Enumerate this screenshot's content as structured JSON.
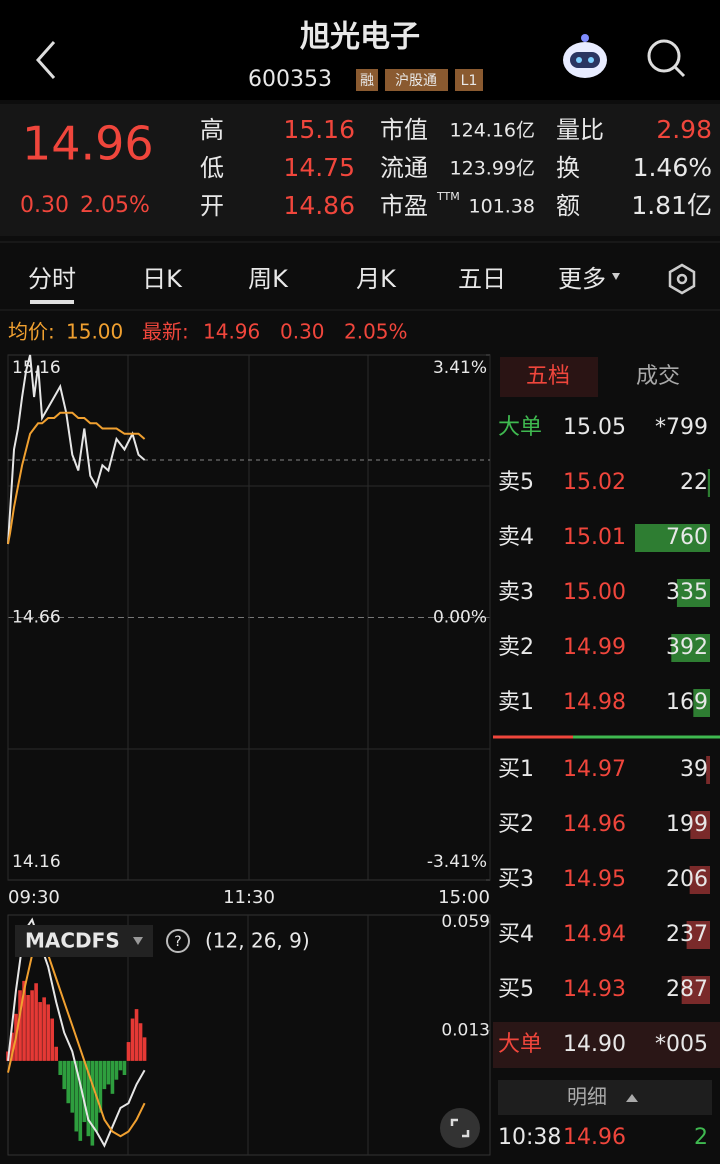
{
  "header": {
    "title": "旭光电子",
    "code": "600353",
    "badges": [
      "融",
      "沪股通",
      "L1"
    ]
  },
  "quote": {
    "price": "14.96",
    "change": "0.30",
    "change_pct": "2.05%",
    "left": [
      {
        "label": "高",
        "value": "15.16"
      },
      {
        "label": "低",
        "value": "14.75"
      },
      {
        "label": "开",
        "value": "14.86"
      }
    ],
    "mid": [
      {
        "label": "市值",
        "value": "124.16亿"
      },
      {
        "label": "流通",
        "value": "123.99亿"
      },
      {
        "label": "市盈",
        "sup": "TTM",
        "value": "101.38"
      }
    ],
    "right": [
      {
        "label": "量比",
        "value": "2.98"
      },
      {
        "label": "换",
        "value": "1.46%"
      },
      {
        "label": "额",
        "value": "1.81亿"
      }
    ]
  },
  "tabs": [
    "分时",
    "日K",
    "周K",
    "月K",
    "五日",
    "更多"
  ],
  "info": {
    "avg_label": "均价:",
    "avg": "15.00",
    "latest_label": "最新:",
    "latest": "14.96",
    "change": "0.30",
    "change_pct": "2.05%"
  },
  "chart_data": [
    {
      "type": "line",
      "x": [
        "09:30",
        "09:31",
        "09:33",
        "09:35",
        "09:37",
        "09:39",
        "09:41",
        "09:43",
        "09:45",
        "09:47",
        "09:50",
        "09:53",
        "09:56",
        "09:59",
        "10:02",
        "10:05",
        "10:08",
        "10:11",
        "10:14",
        "10:17",
        "10:20",
        "10:24",
        "10:28",
        "10:32",
        "10:35",
        "10:38"
      ],
      "series": [
        {
          "color": "#e6e6e6",
          "values": [
            14.8,
            14.86,
            14.98,
            15.02,
            15.08,
            15.13,
            15.16,
            15.08,
            15.14,
            15.04,
            15.06,
            15.08,
            15.1,
            15.05,
            14.97,
            14.94,
            15.02,
            14.93,
            14.91,
            14.95,
            14.94,
            15.0,
            14.98,
            15.01,
            14.97,
            14.96
          ]
        },
        {
          "color": "#f0a030",
          "values": [
            14.8,
            14.82,
            14.87,
            14.91,
            14.95,
            14.98,
            15.01,
            15.02,
            15.03,
            15.03,
            15.04,
            15.04,
            15.05,
            15.05,
            15.05,
            15.04,
            15.04,
            15.03,
            15.03,
            15.02,
            15.02,
            15.02,
            15.01,
            15.01,
            15.01,
            15.0
          ]
        }
      ],
      "xlim": [
        "09:30",
        "15:00"
      ],
      "xticks": [
        "09:30",
        "11:30",
        "15:00"
      ],
      "ylim": [
        14.16,
        15.16
      ],
      "yticks": [
        14.16,
        14.66,
        15.16
      ],
      "y2lim": [
        -3.41,
        3.41
      ],
      "y2ticks": [
        {
          "value": -3.41,
          "label": "-3.41%"
        },
        {
          "value": 0,
          "label": "0.00%"
        },
        {
          "value": 3.41,
          "label": "3.41%"
        }
      ]
    },
    {
      "type": "bar",
      "title": "MACDFS",
      "subtitle": "(12, 26, 9)",
      "x": [
        "09:30",
        "09:32",
        "09:34",
        "09:36",
        "09:38",
        "09:40",
        "09:42",
        "09:44",
        "09:46",
        "09:48",
        "09:50",
        "09:52",
        "09:54",
        "09:56",
        "09:58",
        "10:00",
        "10:02",
        "10:04",
        "10:06",
        "10:08",
        "10:10",
        "10:12",
        "10:14",
        "10:16",
        "10:18",
        "10:20",
        "10:22",
        "10:24",
        "10:26",
        "10:28",
        "10:30",
        "10:32",
        "10:34",
        "10:36",
        "10:38"
      ],
      "values": [
        0.004,
        0.012,
        0.02,
        0.03,
        0.034,
        0.028,
        0.03,
        0.033,
        0.025,
        0.027,
        0.024,
        0.018,
        0.006,
        -0.006,
        -0.012,
        -0.018,
        -0.022,
        -0.03,
        -0.034,
        -0.026,
        -0.032,
        -0.036,
        -0.03,
        -0.022,
        -0.012,
        -0.01,
        -0.014,
        -0.008,
        -0.004,
        -0.006,
        0.008,
        0.018,
        0.022,
        0.016,
        0.01
      ],
      "up_color": "#e53935",
      "down_color": "#2e9e3e",
      "line_x": [
        "09:30",
        "09:34",
        "09:38",
        "09:42",
        "09:46",
        "09:50",
        "09:54",
        "09:58",
        "10:02",
        "10:06",
        "10:10",
        "10:14",
        "10:18",
        "10:22",
        "10:26",
        "10:30",
        "10:34",
        "10:38"
      ],
      "lines": [
        {
          "color": "#e6e6e6",
          "values": [
            0.0,
            0.03,
            0.055,
            0.06,
            0.05,
            0.04,
            0.025,
            0.012,
            0.004,
            -0.01,
            -0.025,
            -0.03,
            -0.036,
            -0.028,
            -0.02,
            -0.018,
            -0.01,
            -0.004
          ]
        },
        {
          "color": "#f0a030",
          "values": [
            -0.005,
            0.01,
            0.03,
            0.045,
            0.05,
            0.045,
            0.035,
            0.025,
            0.015,
            0.005,
            -0.005,
            -0.015,
            -0.025,
            -0.03,
            -0.032,
            -0.03,
            -0.025,
            -0.018
          ]
        }
      ],
      "xlim": [
        "09:30",
        "15:00"
      ],
      "ylim": [
        -0.04,
        0.062
      ],
      "yticks": [
        0.013,
        0.059
      ]
    }
  ],
  "orderbook": {
    "tabs": [
      "五档",
      "成交"
    ],
    "big_top": {
      "label": "大单",
      "price": "15.05",
      "volume": "*799"
    },
    "asks": [
      {
        "label": "卖5",
        "price": "15.02",
        "volume": 22
      },
      {
        "label": "卖4",
        "price": "15.01",
        "volume": 760
      },
      {
        "label": "卖3",
        "price": "15.00",
        "volume": 335
      },
      {
        "label": "卖2",
        "price": "14.99",
        "volume": 392
      },
      {
        "label": "卖1",
        "price": "14.98",
        "volume": 169
      }
    ],
    "bids": [
      {
        "label": "买1",
        "price": "14.97",
        "volume": 39
      },
      {
        "label": "买2",
        "price": "14.96",
        "volume": 199
      },
      {
        "label": "买3",
        "price": "14.95",
        "volume": 206
      },
      {
        "label": "买4",
        "price": "14.94",
        "volume": 237
      },
      {
        "label": "买5",
        "price": "14.93",
        "volume": 287
      }
    ],
    "big_bottom": {
      "label": "大单",
      "price": "14.90",
      "volume": "*005"
    },
    "detail": "明细",
    "trades": [
      {
        "time": "10:38",
        "price": "14.96",
        "volume": "2"
      }
    ]
  }
}
